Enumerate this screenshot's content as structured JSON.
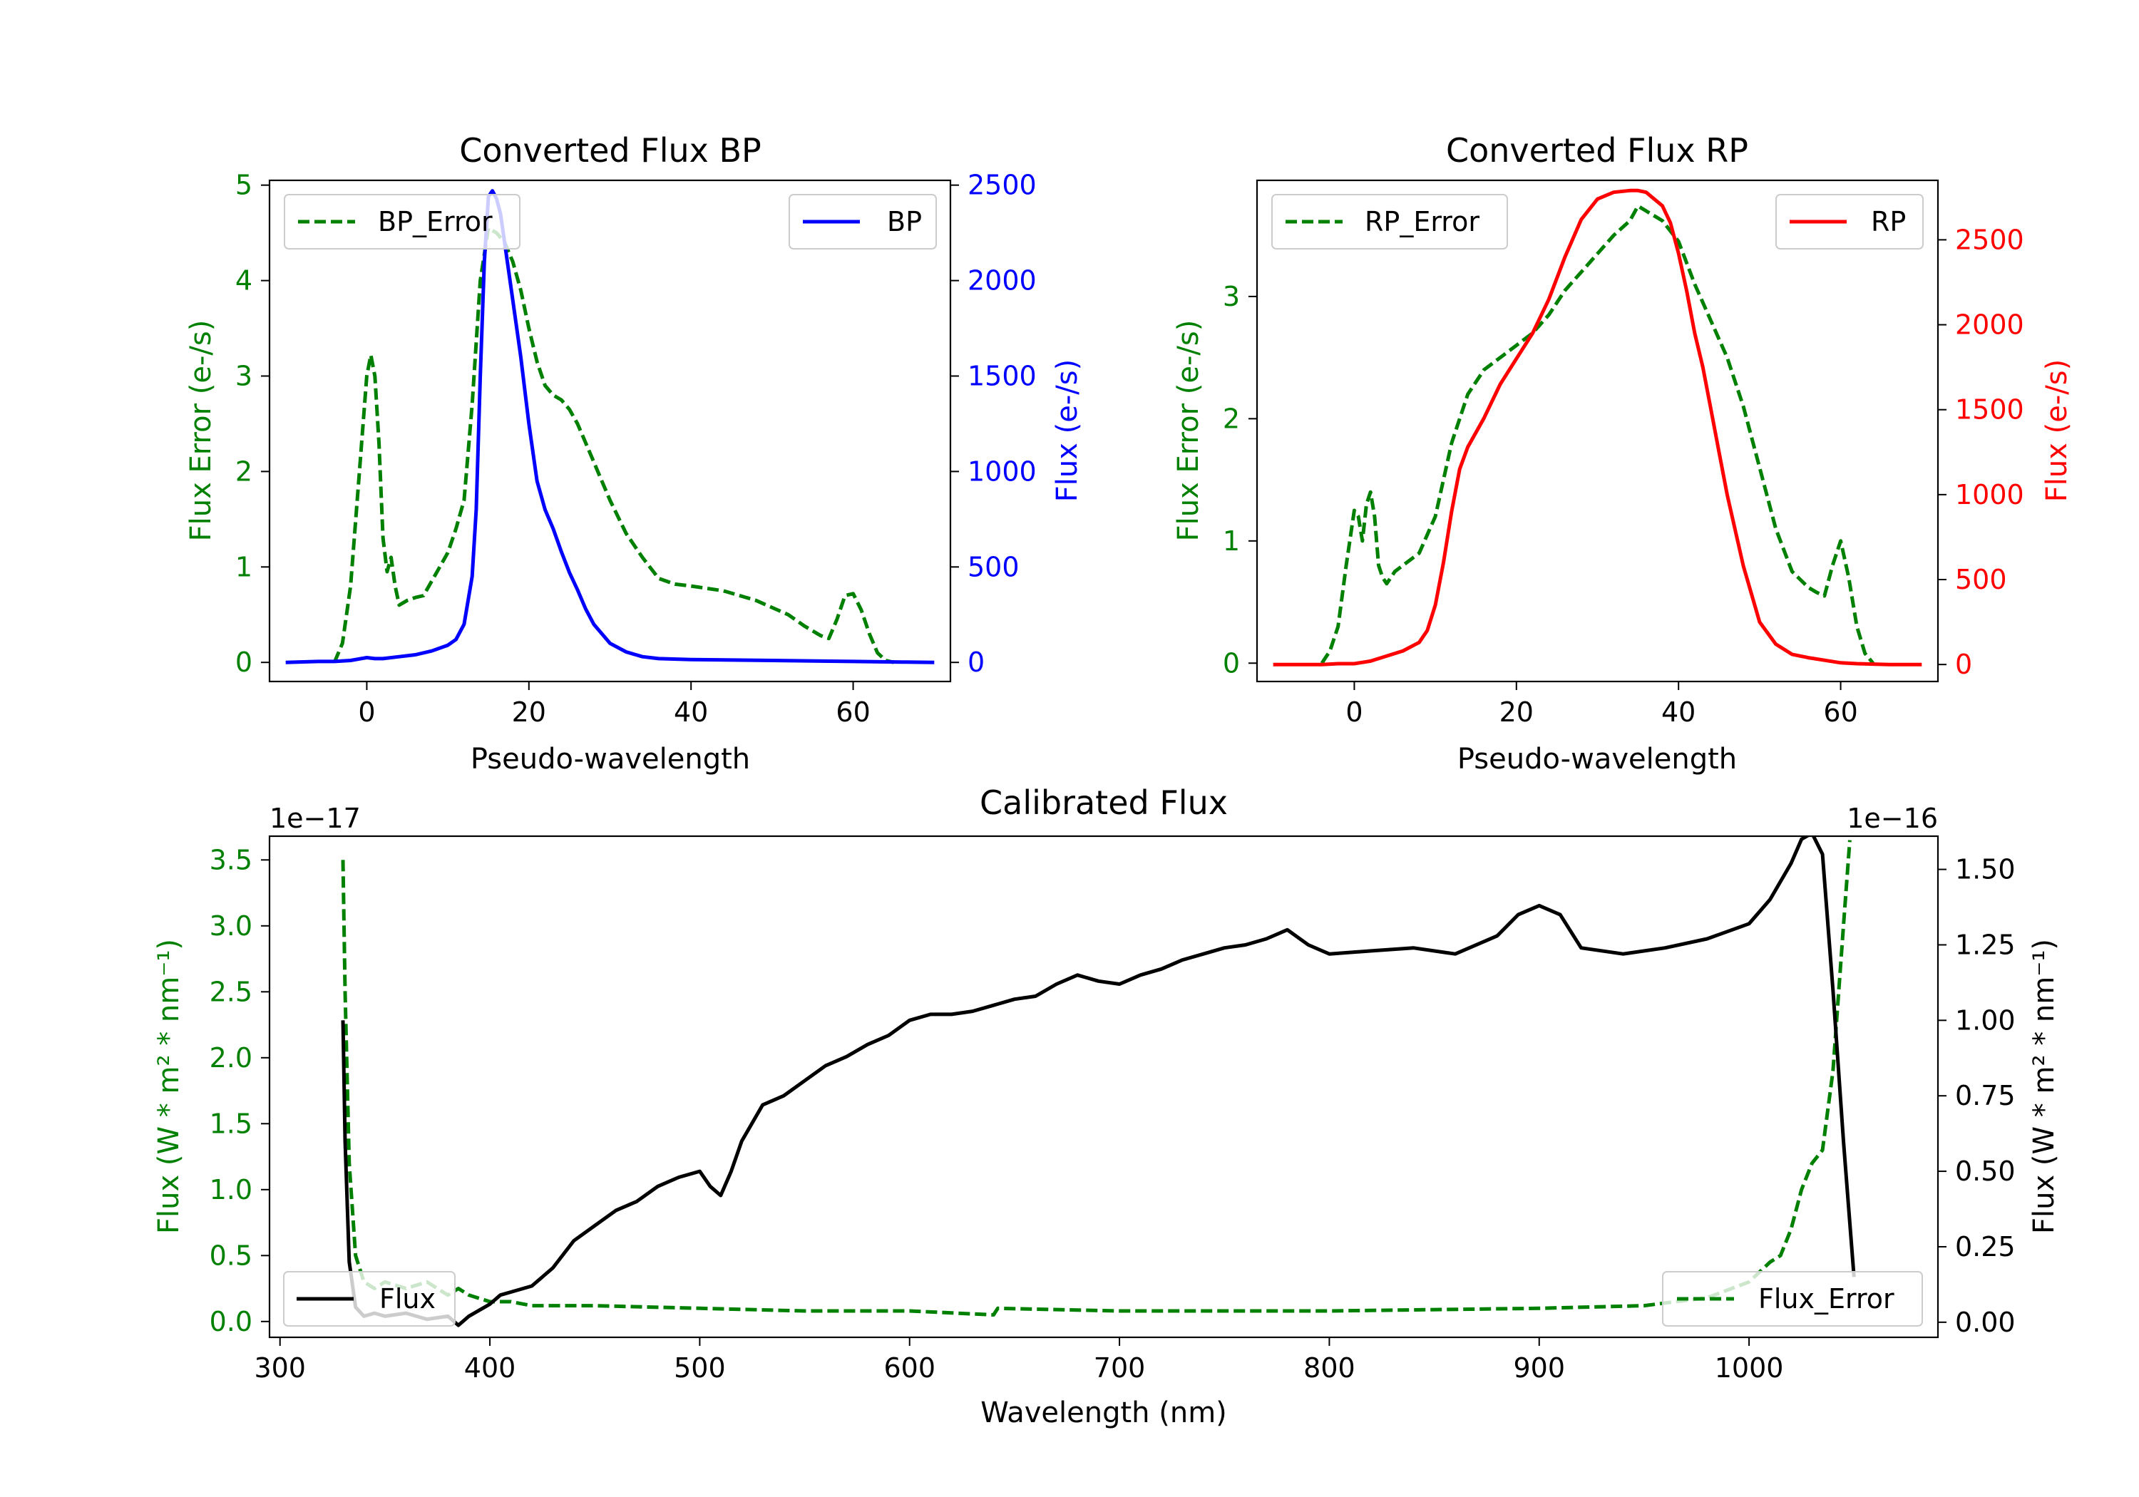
{
  "figure_colors": {
    "green": "#008000",
    "blue": "#0000ff",
    "red": "#ff0000",
    "black": "#000000"
  },
  "chart_data": [
    {
      "id": "bp",
      "type": "line",
      "title": "Converted Flux BP",
      "xlabel": "Pseudo-wavelength",
      "xlim": [
        -12,
        72
      ],
      "xticks": [
        0,
        20,
        40,
        60
      ],
      "left_axis": {
        "label": "Flux Error (e-/s)",
        "color": "#008000",
        "ylim": [
          -0.2,
          5.05
        ],
        "ticks": [
          0,
          1,
          2,
          3,
          4,
          5
        ]
      },
      "right_axis": {
        "label": "Flux (e-/s)",
        "color": "#0000ff",
        "ylim": [
          -100,
          2525
        ],
        "ticks": [
          0,
          500,
          1000,
          1500,
          2000,
          2500
        ]
      },
      "series": [
        {
          "name": "BP_Error",
          "axis": "left",
          "style": "dashed",
          "color": "#008000",
          "x": [
            -4,
            -3,
            -2,
            -1,
            0,
            0.5,
            1,
            1.5,
            2,
            2.5,
            3,
            3.5,
            4,
            5,
            6,
            7,
            8,
            9,
            10,
            11,
            12,
            13,
            14,
            15,
            16,
            17,
            18,
            19,
            20,
            21,
            22,
            23,
            24,
            25,
            26,
            27,
            28,
            29,
            30,
            32,
            34,
            36,
            38,
            40,
            44,
            48,
            52,
            54,
            56,
            57,
            58,
            59,
            60,
            61,
            62,
            63,
            64,
            65
          ],
          "values": [
            0,
            0.2,
            0.8,
            1.9,
            3.0,
            3.22,
            3.0,
            2.3,
            1.3,
            0.95,
            1.1,
            0.8,
            0.6,
            0.65,
            0.68,
            0.7,
            0.85,
            1.0,
            1.15,
            1.4,
            1.7,
            2.7,
            4.0,
            4.55,
            4.5,
            4.4,
            4.2,
            3.9,
            3.5,
            3.15,
            2.9,
            2.8,
            2.75,
            2.65,
            2.5,
            2.3,
            2.1,
            1.9,
            1.7,
            1.35,
            1.1,
            0.88,
            0.82,
            0.8,
            0.75,
            0.65,
            0.5,
            0.38,
            0.28,
            0.25,
            0.45,
            0.7,
            0.72,
            0.55,
            0.3,
            0.1,
            0.02,
            0
          ]
        },
        {
          "name": "BP",
          "axis": "right",
          "style": "solid",
          "color": "#0000ff",
          "x": [
            -10,
            -6,
            -4,
            -2,
            0,
            1,
            2,
            4,
            6,
            8,
            10,
            11,
            12,
            13,
            13.5,
            14,
            14.5,
            15,
            15.5,
            16,
            16.5,
            17,
            18,
            19,
            20,
            21,
            22,
            23,
            24,
            25,
            26,
            27,
            28,
            30,
            32,
            34,
            36,
            40,
            50,
            60,
            66,
            70
          ],
          "values": [
            0,
            5,
            5,
            10,
            25,
            20,
            20,
            30,
            40,
            60,
            90,
            120,
            200,
            450,
            800,
            1500,
            2100,
            2440,
            2470,
            2430,
            2350,
            2200,
            1900,
            1600,
            1250,
            950,
            800,
            700,
            580,
            470,
            380,
            280,
            200,
            100,
            55,
            30,
            20,
            15,
            10,
            5,
            2,
            0
          ]
        }
      ],
      "legend": [
        {
          "label": "BP_Error",
          "position": "upper-left"
        },
        {
          "label": "BP",
          "position": "upper-right"
        }
      ]
    },
    {
      "id": "rp",
      "type": "line",
      "title": "Converted Flux RP",
      "xlabel": "Pseudo-wavelength",
      "xlim": [
        -12,
        72
      ],
      "xticks": [
        0,
        20,
        40,
        60
      ],
      "left_axis": {
        "label": "Flux Error (e-/s)",
        "color": "#008000",
        "ylim": [
          -0.15,
          3.95
        ],
        "ticks": [
          0,
          1,
          2,
          3
        ]
      },
      "right_axis": {
        "label": "Flux (e-/s)",
        "color": "#ff0000",
        "ylim": [
          -100,
          2850
        ],
        "ticks": [
          0,
          500,
          1000,
          1500,
          2000,
          2500
        ]
      },
      "series": [
        {
          "name": "RP_Error",
          "axis": "left",
          "style": "dashed",
          "color": "#008000",
          "x": [
            -4,
            -3,
            -2,
            -1,
            0,
            0.5,
            1,
            1.5,
            2,
            2.5,
            3,
            3.5,
            4,
            5,
            6,
            8,
            10,
            12,
            14,
            16,
            18,
            20,
            22,
            24,
            26,
            28,
            30,
            32,
            34,
            35,
            36,
            38,
            40,
            42,
            44,
            46,
            48,
            50,
            52,
            54,
            56,
            57,
            58,
            59,
            60,
            61,
            62,
            63,
            64
          ],
          "values": [
            0,
            0.1,
            0.3,
            0.8,
            1.25,
            1.2,
            1.0,
            1.3,
            1.4,
            1.2,
            0.8,
            0.7,
            0.65,
            0.75,
            0.8,
            0.9,
            1.2,
            1.8,
            2.2,
            2.4,
            2.5,
            2.6,
            2.7,
            2.85,
            3.05,
            3.2,
            3.35,
            3.5,
            3.62,
            3.74,
            3.7,
            3.62,
            3.45,
            3.1,
            2.8,
            2.5,
            2.1,
            1.6,
            1.1,
            0.75,
            0.62,
            0.58,
            0.55,
            0.8,
            1.0,
            0.7,
            0.3,
            0.08,
            0
          ]
        },
        {
          "name": "RP",
          "axis": "right",
          "style": "solid",
          "color": "#ff0000",
          "x": [
            -10,
            -4,
            -2,
            0,
            2,
            4,
            6,
            8,
            9,
            10,
            11,
            12,
            13,
            14,
            16,
            18,
            20,
            22,
            24,
            26,
            28,
            30,
            32,
            34,
            35,
            36,
            38,
            39,
            40,
            41,
            42,
            43,
            44,
            45,
            46,
            48,
            50,
            52,
            54,
            56,
            58,
            60,
            62,
            66,
            70
          ],
          "values": [
            0,
            0,
            5,
            5,
            20,
            50,
            80,
            130,
            200,
            350,
            600,
            900,
            1150,
            1280,
            1450,
            1650,
            1800,
            1950,
            2150,
            2400,
            2620,
            2740,
            2780,
            2790,
            2790,
            2780,
            2700,
            2600,
            2420,
            2200,
            1950,
            1750,
            1500,
            1250,
            1000,
            580,
            250,
            120,
            60,
            40,
            25,
            10,
            5,
            0,
            0
          ]
        }
      ],
      "legend": [
        {
          "label": "RP_Error",
          "position": "upper-left"
        },
        {
          "label": "RP",
          "position": "upper-right"
        }
      ]
    },
    {
      "id": "cal",
      "type": "line",
      "title": "Calibrated Flux",
      "xlabel": "Wavelength (nm)",
      "xlim": [
        295,
        1090
      ],
      "xticks": [
        300,
        400,
        500,
        600,
        700,
        800,
        900,
        1000
      ],
      "left_axis": {
        "label": "Flux (W * m² * nm⁻¹)",
        "color": "#008000",
        "ylim": [
          -0.12,
          3.68
        ],
        "ticks": [
          0.0,
          0.5,
          1.0,
          1.5,
          2.0,
          2.5,
          3.0,
          3.5
        ],
        "tick_format": "%.1f",
        "offset_text": "1e−17"
      },
      "right_axis": {
        "label": "Flux (W * m² * nm⁻¹)",
        "color": "#000000",
        "ylim": [
          -0.05,
          1.61
        ],
        "ticks": [
          0.0,
          0.25,
          0.5,
          0.75,
          1.0,
          1.25,
          1.5
        ],
        "tick_format": "%.2f",
        "offset_text": "1e−16"
      },
      "series": [
        {
          "name": "Flux_Error",
          "axis": "left",
          "style": "dashed",
          "color": "#008000",
          "x": [
            330,
            331,
            333,
            336,
            340,
            345,
            350,
            360,
            370,
            380,
            385,
            390,
            400,
            410,
            420,
            450,
            500,
            550,
            600,
            640,
            642,
            700,
            800,
            900,
            950,
            980,
            1000,
            1010,
            1015,
            1020,
            1025,
            1030,
            1035,
            1040,
            1045,
            1048
          ],
          "values": [
            3.5,
            2.5,
            1.2,
            0.5,
            0.3,
            0.25,
            0.3,
            0.25,
            0.3,
            0.2,
            0.25,
            0.2,
            0.15,
            0.15,
            0.12,
            0.12,
            0.1,
            0.08,
            0.08,
            0.05,
            0.1,
            0.08,
            0.08,
            0.1,
            0.12,
            0.18,
            0.3,
            0.45,
            0.5,
            0.7,
            1.0,
            1.2,
            1.3,
            1.9,
            3.0,
            3.65
          ]
        },
        {
          "name": "Flux",
          "axis": "right",
          "style": "solid",
          "color": "#000000",
          "x": [
            330,
            331,
            333,
            336,
            340,
            345,
            350,
            360,
            370,
            380,
            385,
            390,
            395,
            400,
            405,
            410,
            420,
            430,
            440,
            450,
            460,
            470,
            480,
            490,
            500,
            505,
            510,
            515,
            520,
            530,
            540,
            550,
            560,
            570,
            580,
            590,
            600,
            610,
            620,
            630,
            640,
            650,
            660,
            670,
            680,
            690,
            700,
            710,
            720,
            730,
            740,
            750,
            760,
            770,
            780,
            790,
            800,
            820,
            840,
            860,
            880,
            890,
            900,
            910,
            920,
            940,
            960,
            980,
            1000,
            1010,
            1020,
            1025,
            1030,
            1035,
            1040,
            1045,
            1050
          ],
          "values": [
            1.0,
            0.6,
            0.2,
            0.05,
            0.02,
            0.03,
            0.02,
            0.03,
            0.01,
            0.02,
            -0.01,
            0.02,
            0.04,
            0.06,
            0.09,
            0.1,
            0.12,
            0.18,
            0.27,
            0.32,
            0.37,
            0.4,
            0.45,
            0.48,
            0.5,
            0.45,
            0.42,
            0.5,
            0.6,
            0.72,
            0.75,
            0.8,
            0.85,
            0.88,
            0.92,
            0.95,
            1.0,
            1.02,
            1.02,
            1.03,
            1.05,
            1.07,
            1.08,
            1.12,
            1.15,
            1.13,
            1.12,
            1.15,
            1.17,
            1.2,
            1.22,
            1.24,
            1.25,
            1.27,
            1.3,
            1.25,
            1.22,
            1.23,
            1.24,
            1.22,
            1.28,
            1.35,
            1.38,
            1.35,
            1.24,
            1.22,
            1.24,
            1.27,
            1.32,
            1.4,
            1.52,
            1.6,
            1.62,
            1.55,
            1.1,
            0.6,
            0.15
          ]
        }
      ],
      "legend": [
        {
          "label": "Flux",
          "position": "lower-left"
        },
        {
          "label": "Flux_Error",
          "position": "lower-right"
        }
      ]
    }
  ]
}
